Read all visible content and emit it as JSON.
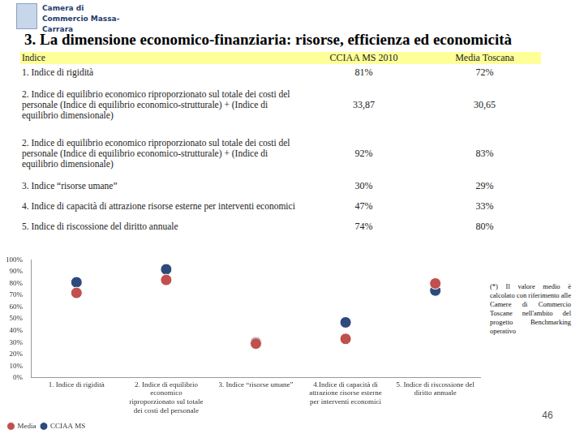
{
  "header": {
    "logo": "Camera di Commercio Massa-Carrara",
    "title": "3. La dimensione economico-finanziaria: risorse, efficienza ed economicità"
  },
  "table": {
    "rows": [
      [
        "Indice",
        "CCIAA MS 2010",
        "Media Toscana"
      ],
      [
        "1. Indice di rigidità",
        "81%",
        "72%"
      ],
      [
        "2. Indice di equilibrio economico riproporzionato sul totale dei costi del personale (Indice di equilibrio economico-strutturale) + (Indice di equilibrio dimensionale)",
        "33,87",
        "30,65"
      ],
      [
        "2. Indice di equilibrio economico riproporzionato sul totale dei costi del personale (Indice di equilibrio economico-strutturale) + (Indice di equilibrio dimensionale)",
        "92%",
        "83%"
      ],
      [
        "3. Indice “risorse umane”",
        "30%",
        "29%"
      ],
      [
        "4. Indice di capacità di attrazione risorse esterne per interventi economici",
        "47%",
        "33%"
      ],
      [
        "5. Indice di riscossione del diritto annuale",
        "74%",
        "80%"
      ]
    ]
  },
  "chart_data": {
    "type": "scatter",
    "categories": [
      [
        "1. Indice di rigidità"
      ],
      [
        "2. Indice di equilibrio",
        "economico",
        "riproporzionato sul totale",
        "dei costi del personale"
      ],
      [
        "3. Indice “risorse umane”"
      ],
      [
        "4.Indice di capacità di",
        "attrazione risorse esterne",
        "per interventi economici"
      ],
      [
        "5. Indice di riscossione del",
        "diritto annuale"
      ]
    ],
    "series": [
      {
        "name": "Media",
        "color": "#c0504d",
        "marker": "circle",
        "values": [
          72,
          83,
          29,
          33,
          80
        ]
      },
      {
        "name": "CCIAA MS",
        "color": "#2e4a7d",
        "marker": "circle",
        "values": [
          81,
          92,
          30,
          47,
          74
        ]
      }
    ],
    "ylim": [
      0,
      100
    ],
    "yticks": [
      {
        "value": 0,
        "label": "0%"
      },
      {
        "value": 10,
        "label": "10%"
      },
      {
        "value": 20,
        "label": "20%"
      },
      {
        "value": 30,
        "label": "30%"
      },
      {
        "value": 40,
        "label": "40%"
      },
      {
        "value": 50,
        "label": "50%"
      },
      {
        "value": 60,
        "label": "60%"
      },
      {
        "value": 70,
        "label": "70%"
      },
      {
        "value": 80,
        "label": "80%"
      },
      {
        "value": 90,
        "label": "90%"
      },
      {
        "value": 100,
        "label": "100%"
      }
    ],
    "grid": false,
    "legend": "lower left"
  },
  "note": "(*) Il valore medio è calcolato con riferimento alle Camere di Commercio Toscane nell'ambito del progetto Benchmarking operativo",
  "page": "46"
}
